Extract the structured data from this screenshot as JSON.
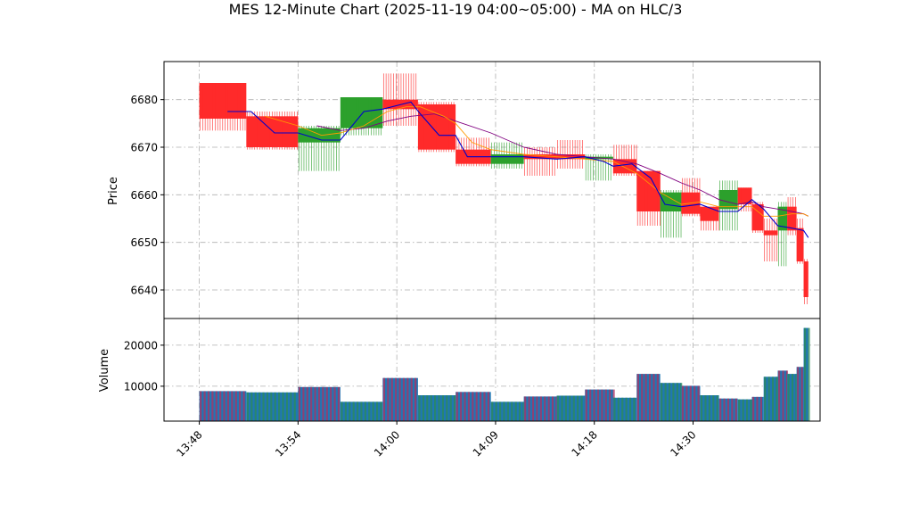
{
  "chart_data": {
    "type": "candlestick",
    "title": "MES 12-Minute Chart (2025-11-19 04:00~05:00) - MA on HLC/3",
    "price_panel": {
      "ylabel": "Price",
      "ylim": [
        6634,
        6688
      ],
      "yticks": [
        6640,
        6650,
        6660,
        6670,
        6680
      ],
      "grid": true
    },
    "volume_panel": {
      "ylabel": "Volume",
      "ylim": [
        1500,
        26500
      ],
      "yticks": [
        10000,
        20000
      ],
      "grid": true
    },
    "x_axis": {
      "xlim": [
        13.05,
        27.0
      ],
      "ticks": [
        {
          "label": "13:48",
          "x": 13.8
        },
        {
          "label": "13:54",
          "x": 15.9
        },
        {
          "label": "14:00",
          "x": 18.0
        },
        {
          "label": "14:09",
          "x": 20.1
        },
        {
          "label": "14:18",
          "x": 22.2
        },
        {
          "label": "14:30",
          "x": 24.3
        }
      ]
    },
    "colors": {
      "up": "#2ca02c",
      "down": "#ff2a2a",
      "ma_fast": "#0000cc",
      "ma_mid": "#ff9900",
      "ma_slow": "#800080",
      "volume_edge": "#b03060",
      "volume_fill": "#1f77b4"
    },
    "candles": [
      {
        "x0": 13.8,
        "x1": 14.8,
        "open": 6683.5,
        "close": 6676.0,
        "high": 6683.5,
        "low": 6673.5,
        "volume": 8800
      },
      {
        "x0": 14.8,
        "x1": 15.9,
        "open": 6676.5,
        "close": 6670.0,
        "high": 6677.5,
        "low": 6669.5,
        "volume": 8500
      },
      {
        "x0": 15.9,
        "x1": 16.8,
        "open": 6671.0,
        "close": 6674.0,
        "high": 6674.5,
        "low": 6665.0,
        "volume": 9800
      },
      {
        "x0": 16.8,
        "x1": 17.7,
        "open": 6674.0,
        "close": 6680.5,
        "high": 6680.5,
        "low": 6672.5,
        "volume": 6200
      },
      {
        "x0": 17.7,
        "x1": 18.45,
        "open": 6680.0,
        "close": 6678.0,
        "high": 6685.5,
        "low": 6674.5,
        "volume": 12000
      },
      {
        "x0": 18.45,
        "x1": 19.25,
        "open": 6679.0,
        "close": 6669.5,
        "high": 6679.5,
        "low": 6669.0,
        "volume": 7800
      },
      {
        "x0": 19.25,
        "x1": 20.0,
        "open": 6669.5,
        "close": 6666.5,
        "high": 6672.0,
        "low": 6666.0,
        "volume": 8600
      },
      {
        "x0": 20.0,
        "x1": 20.7,
        "open": 6666.5,
        "close": 6668.5,
        "high": 6671.0,
        "low": 6665.5,
        "volume": 6200
      },
      {
        "x0": 20.7,
        "x1": 21.4,
        "open": 6668.5,
        "close": 6667.5,
        "high": 6670.0,
        "low": 6664.0,
        "volume": 7500
      },
      {
        "x0": 21.4,
        "x1": 22.0,
        "open": 6668.5,
        "close": 6667.5,
        "high": 6671.5,
        "low": 6665.5,
        "volume": 7700
      },
      {
        "x0": 22.0,
        "x1": 22.6,
        "open": 6667.5,
        "close": 6668.0,
        "high": 6668.5,
        "low": 6663.0,
        "volume": 9200
      },
      {
        "x0": 22.6,
        "x1": 23.1,
        "open": 6667.5,
        "close": 6664.5,
        "high": 6670.5,
        "low": 6664.0,
        "volume": 7200
      },
      {
        "x0": 23.1,
        "x1": 23.6,
        "open": 6665.0,
        "close": 6656.5,
        "high": 6665.0,
        "low": 6653.5,
        "volume": 13000
      },
      {
        "x0": 23.6,
        "x1": 24.05,
        "open": 6656.5,
        "close": 6660.5,
        "high": 6661.0,
        "low": 6651.0,
        "volume": 10800
      },
      {
        "x0": 24.05,
        "x1": 24.45,
        "open": 6660.5,
        "close": 6656.0,
        "high": 6663.5,
        "low": 6655.5,
        "volume": 10100
      },
      {
        "x0": 24.45,
        "x1": 24.85,
        "open": 6657.5,
        "close": 6654.5,
        "high": 6657.5,
        "low": 6652.5,
        "volume": 7800
      },
      {
        "x0": 24.85,
        "x1": 25.25,
        "open": 6657.0,
        "close": 6661.0,
        "high": 6663.0,
        "low": 6652.5,
        "volume": 7000
      },
      {
        "x0": 25.25,
        "x1": 25.55,
        "open": 6661.5,
        "close": 6658.0,
        "high": 6661.5,
        "low": 6656.5,
        "volume": 6800
      },
      {
        "x0": 25.55,
        "x1": 25.8,
        "open": 6658.0,
        "close": 6652.5,
        "high": 6658.5,
        "low": 6652.0,
        "volume": 7400
      },
      {
        "x0": 25.8,
        "x1": 26.1,
        "open": 6652.5,
        "close": 6651.5,
        "high": 6655.0,
        "low": 6646.0,
        "volume": 12300
      },
      {
        "x0": 26.1,
        "x1": 26.3,
        "open": 6652.5,
        "close": 6657.5,
        "high": 6658.5,
        "low": 6645.0,
        "volume": 13800
      },
      {
        "x0": 26.3,
        "x1": 26.5,
        "open": 6657.5,
        "close": 6652.5,
        "high": 6659.5,
        "low": 6651.5,
        "volume": 13000
      },
      {
        "x0": 26.5,
        "x1": 26.65,
        "open": 6653.0,
        "close": 6646.0,
        "high": 6655.0,
        "low": 6645.5,
        "volume": 14700
      },
      {
        "x0": 26.65,
        "x1": 26.75,
        "open": 6646.0,
        "close": 6638.5,
        "high": 6646.5,
        "low": 6637.0,
        "volume": 24200
      }
    ],
    "ma_fast": {
      "x": [
        14.4,
        14.9,
        15.4,
        15.9,
        16.4,
        16.8,
        17.3,
        17.7,
        18.1,
        18.3,
        18.5,
        18.9,
        19.25,
        19.5,
        20.0,
        20.7,
        21.4,
        22.0,
        22.4,
        22.6,
        23.0,
        23.4,
        23.7,
        24.05,
        24.45,
        24.85,
        25.25,
        25.55,
        25.8,
        26.1,
        26.4,
        26.65,
        26.75
      ],
      "y": [
        6677.5,
        6677.5,
        6673.0,
        6673.0,
        6671.5,
        6671.5,
        6677.5,
        6678.0,
        6679.0,
        6679.5,
        6677.0,
        6672.5,
        6672.5,
        6668.0,
        6668.0,
        6668.0,
        6667.5,
        6668.0,
        6667.0,
        6666.0,
        6666.5,
        6663.5,
        6658.0,
        6657.5,
        6658.0,
        6656.5,
        6656.5,
        6659.0,
        6657.0,
        6653.5,
        6653.0,
        6652.5,
        6651.0
      ]
    },
    "ma_mid": {
      "x": [
        15.2,
        15.9,
        16.4,
        16.8,
        17.3,
        17.8,
        18.2,
        18.5,
        19.0,
        19.25,
        19.6,
        20.0,
        20.7,
        21.4,
        22.0,
        22.6,
        23.1,
        23.6,
        24.05,
        24.45,
        24.85,
        25.25,
        25.55,
        25.8,
        26.1,
        26.4,
        26.65,
        26.75
      ],
      "y": [
        6676.5,
        6674.5,
        6672.5,
        6673.0,
        6674.5,
        6677.5,
        6678.5,
        6678.5,
        6676.5,
        6675.0,
        6671.0,
        6669.5,
        6668.5,
        6668.0,
        6667.5,
        6667.0,
        6664.5,
        6660.5,
        6658.0,
        6658.5,
        6657.5,
        6657.5,
        6657.5,
        6655.5,
        6655.5,
        6656.0,
        6656.0,
        6655.5
      ]
    },
    "ma_slow": {
      "x": [
        16.3,
        16.8,
        17.3,
        17.8,
        18.3,
        18.8,
        19.25,
        20.0,
        20.7,
        21.4,
        22.0,
        22.6,
        23.1,
        23.6,
        24.05,
        24.45,
        24.85,
        25.25,
        25.55,
        25.8,
        26.1,
        26.4,
        26.65,
        26.75
      ],
      "y": [
        6674.5,
        6673.5,
        6674.0,
        6675.5,
        6676.5,
        6677.0,
        6675.5,
        6673.0,
        6670.0,
        6668.5,
        6668.0,
        6667.5,
        6666.5,
        6664.5,
        6662.5,
        6661.0,
        6659.0,
        6658.0,
        6658.5,
        6657.5,
        6657.0,
        6656.5,
        6656.0,
        6655.5
      ]
    }
  }
}
